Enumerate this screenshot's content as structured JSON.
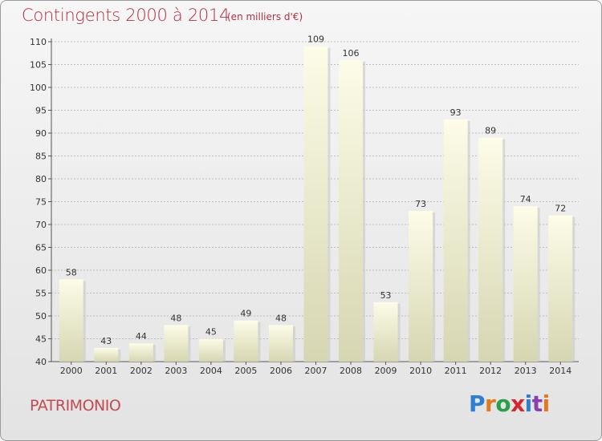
{
  "header": {
    "title": "Contingents 2000 à 2014",
    "subtitle": "(en milliers d'€)"
  },
  "footer": {
    "commune": "PATRIMONIO",
    "logo_text": "Proxiti"
  },
  "colors": {
    "title": "#b03040",
    "bar_top": "#fcfce8",
    "bar_bottom": "#d6d6b2",
    "grid": "#bfbfbf"
  },
  "chart_data": {
    "type": "bar",
    "title": "Contingents 2000 à 2014",
    "xlabel": "",
    "ylabel": "",
    "categories": [
      "2000",
      "2001",
      "2002",
      "2003",
      "2004",
      "2005",
      "2006",
      "2007",
      "2008",
      "2009",
      "2010",
      "2011",
      "2012",
      "2013",
      "2014"
    ],
    "values": [
      58,
      43,
      44,
      48,
      45,
      49,
      48,
      109,
      106,
      53,
      73,
      93,
      89,
      74,
      72
    ],
    "ylim": [
      40,
      110
    ],
    "yticks": [
      40,
      45,
      50,
      55,
      60,
      65,
      70,
      75,
      80,
      85,
      90,
      95,
      100,
      105,
      110
    ],
    "grid": true,
    "data_labels": true
  }
}
